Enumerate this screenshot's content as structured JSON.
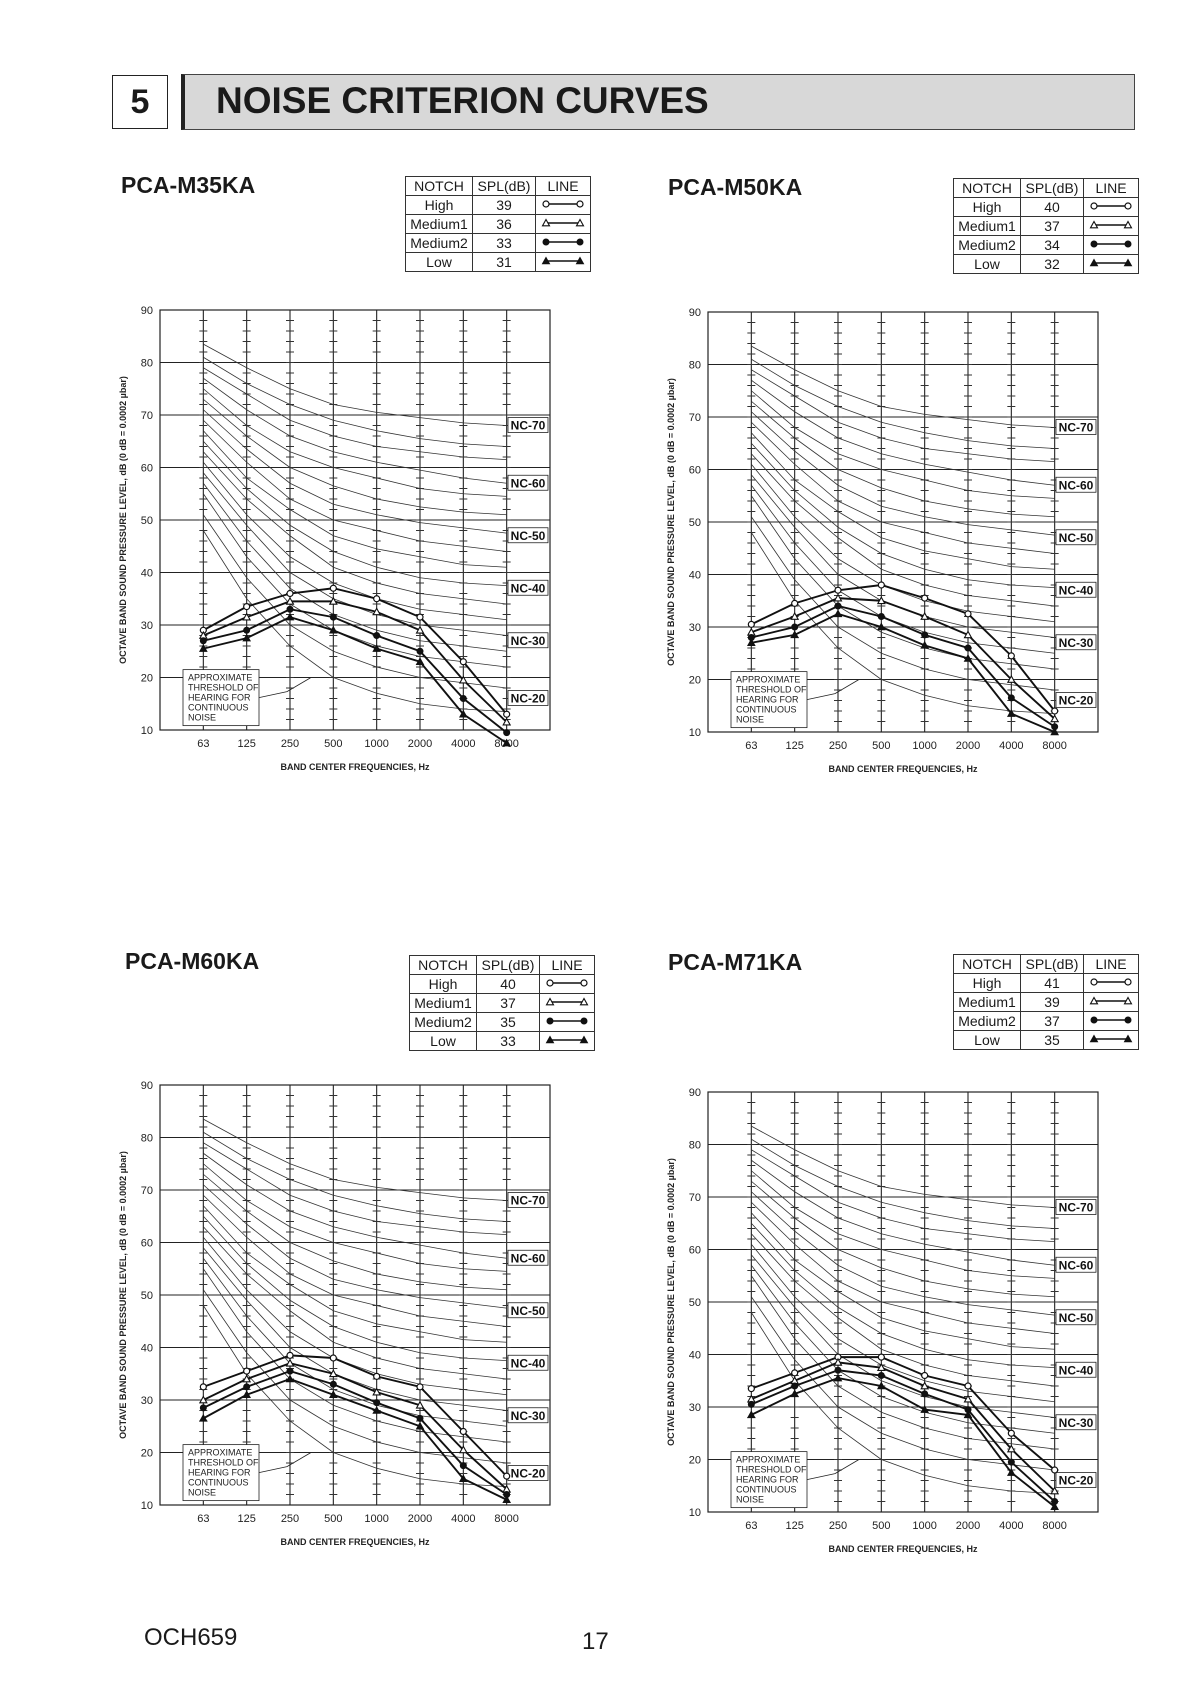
{
  "section": {
    "number": "5",
    "title": "NOISE CRITERION CURVES"
  },
  "legend_headers": [
    "NOTCH",
    "SPL(dB)",
    "LINE"
  ],
  "footer": {
    "code": "OCH659",
    "page": "17"
  },
  "chart_data": [
    {
      "type": "line",
      "title": "PCA-M35KA",
      "x": [
        "63",
        "125",
        "250",
        "500",
        "1000",
        "2000",
        "4000",
        "8000"
      ],
      "xlabel": "BAND CENTER FREQUENCIES, Hz",
      "ylabel": "OCTAVE BAND SOUND PRESSURE LEVEL, dB (0 dB = 0.0002 µbar)",
      "ylim": [
        10,
        90
      ],
      "yticks": [
        10,
        20,
        30,
        40,
        50,
        60,
        70,
        80,
        90
      ],
      "grid": true,
      "nc_labels": [
        "NC-70",
        "NC-60",
        "NC-50",
        "NC-40",
        "NC-30",
        "NC-20"
      ],
      "nc_label_values": [
        68,
        57,
        47,
        37,
        27,
        16
      ],
      "threshold_note": [
        "APPROXIMATE",
        "THRESHOLD OF",
        "HEARING FOR",
        "CONTINUOUS",
        "NOISE"
      ],
      "series": [
        {
          "name": "High",
          "spl": "39",
          "marker": "circle-open",
          "values": [
            29,
            33.5,
            36,
            37,
            35,
            31.5,
            23,
            13
          ]
        },
        {
          "name": "Medium1",
          "spl": "36",
          "marker": "triangle-open",
          "values": [
            28,
            31.5,
            34.5,
            34.5,
            32.5,
            29,
            19.5,
            11.5
          ]
        },
        {
          "name": "Medium2",
          "spl": "33",
          "marker": "circle-filled",
          "values": [
            27,
            29,
            33,
            31.5,
            28,
            25,
            16,
            9.5
          ]
        },
        {
          "name": "Low",
          "spl": "31",
          "marker": "triangle-filled",
          "values": [
            25.5,
            27.5,
            31.5,
            29,
            25.5,
            23,
            13,
            7.5
          ]
        }
      ]
    },
    {
      "type": "line",
      "title": "PCA-M50KA",
      "x": [
        "63",
        "125",
        "250",
        "500",
        "1000",
        "2000",
        "4000",
        "8000"
      ],
      "xlabel": "BAND CENTER FREQUENCIES, Hz",
      "ylabel": "OCTAVE BAND SOUND PRESSURE LEVEL, dB (0 dB = 0.0002 µbar)",
      "ylim": [
        10,
        90
      ],
      "yticks": [
        10,
        20,
        30,
        40,
        50,
        60,
        70,
        80,
        90
      ],
      "grid": true,
      "nc_labels": [
        "NC-70",
        "NC-60",
        "NC-50",
        "NC-40",
        "NC-30",
        "NC-20"
      ],
      "nc_label_values": [
        68,
        57,
        47,
        37,
        27,
        16
      ],
      "threshold_note": [
        "APPROXIMATE",
        "THRESHOLD OF",
        "HEARING FOR",
        "CONTINUOUS",
        "NOISE"
      ],
      "series": [
        {
          "name": "High",
          "spl": "40",
          "marker": "circle-open",
          "values": [
            30.5,
            34.5,
            37,
            38,
            35.5,
            32.5,
            24.5,
            14
          ]
        },
        {
          "name": "Medium1",
          "spl": "37",
          "marker": "triangle-open",
          "values": [
            29,
            32,
            35.5,
            35,
            32,
            28.5,
            20,
            12.5
          ]
        },
        {
          "name": "Medium2",
          "spl": "34",
          "marker": "circle-filled",
          "values": [
            28,
            30,
            34,
            32,
            28.5,
            26,
            16.5,
            11
          ]
        },
        {
          "name": "Low",
          "spl": "32",
          "marker": "triangle-filled",
          "values": [
            27,
            28.5,
            32.5,
            30,
            26.5,
            24,
            13.5,
            10
          ]
        }
      ]
    },
    {
      "type": "line",
      "title": "PCA-M60KA",
      "x": [
        "63",
        "125",
        "250",
        "500",
        "1000",
        "2000",
        "4000",
        "8000"
      ],
      "xlabel": "BAND CENTER FREQUENCIES, Hz",
      "ylabel": "OCTAVE BAND SOUND PRESSURE LEVEL, dB (0 dB = 0.0002 µbar)",
      "ylim": [
        10,
        90
      ],
      "yticks": [
        10,
        20,
        30,
        40,
        50,
        60,
        70,
        80,
        90
      ],
      "grid": true,
      "nc_labels": [
        "NC-70",
        "NC-60",
        "NC-50",
        "NC-40",
        "NC-30",
        "NC-20"
      ],
      "nc_label_values": [
        68,
        57,
        47,
        37,
        27,
        16
      ],
      "threshold_note": [
        "APPROXIMATE",
        "THRESHOLD OF",
        "HEARING FOR",
        "CONTINUOUS",
        "NOISE"
      ],
      "series": [
        {
          "name": "High",
          "spl": "40",
          "marker": "circle-open",
          "values": [
            32.5,
            35.5,
            38.5,
            38,
            34.5,
            32.5,
            24,
            15.5
          ]
        },
        {
          "name": "Medium1",
          "spl": "37",
          "marker": "triangle-open",
          "values": [
            30,
            34,
            37,
            35,
            31.5,
            29,
            20.5,
            13
          ]
        },
        {
          "name": "Medium2",
          "spl": "35",
          "marker": "circle-filled",
          "values": [
            28.5,
            32.5,
            35.5,
            33,
            29.5,
            26.5,
            17.5,
            12
          ]
        },
        {
          "name": "Low",
          "spl": "33",
          "marker": "triangle-filled",
          "values": [
            26.5,
            31,
            34,
            31,
            28,
            25,
            15,
            11
          ]
        }
      ]
    },
    {
      "type": "line",
      "title": "PCA-M71KA",
      "x": [
        "63",
        "125",
        "250",
        "500",
        "1000",
        "2000",
        "4000",
        "8000"
      ],
      "xlabel": "BAND CENTER FREQUENCIES, Hz",
      "ylabel": "OCTAVE BAND SOUND PRESSURE LEVEL, dB (0 dB = 0.0002 µbar)",
      "ylim": [
        10,
        90
      ],
      "yticks": [
        10,
        20,
        30,
        40,
        50,
        60,
        70,
        80,
        90
      ],
      "grid": true,
      "nc_labels": [
        "NC-70",
        "NC-60",
        "NC-50",
        "NC-40",
        "NC-30",
        "NC-20"
      ],
      "nc_label_values": [
        68,
        57,
        47,
        37,
        27,
        16
      ],
      "threshold_note": [
        "APPROXIMATE",
        "THRESHOLD OF",
        "HEARING FOR",
        "CONTINUOUS",
        "NOISE"
      ],
      "series": [
        {
          "name": "High",
          "spl": "41",
          "marker": "circle-open",
          "values": [
            33.5,
            36.5,
            39.5,
            39.5,
            36,
            34,
            25,
            18
          ]
        },
        {
          "name": "Medium1",
          "spl": "39",
          "marker": "triangle-open",
          "values": [
            31.5,
            35,
            38.5,
            37.5,
            34,
            31.5,
            22,
            14
          ]
        },
        {
          "name": "Medium2",
          "spl": "37",
          "marker": "circle-filled",
          "values": [
            30.5,
            34,
            37,
            36,
            32.5,
            29.5,
            19.5,
            12
          ]
        },
        {
          "name": "Low",
          "spl": "35",
          "marker": "triangle-filled",
          "values": [
            28.5,
            32.5,
            35.5,
            34,
            29.5,
            28.5,
            17.5,
            11
          ]
        }
      ]
    }
  ]
}
